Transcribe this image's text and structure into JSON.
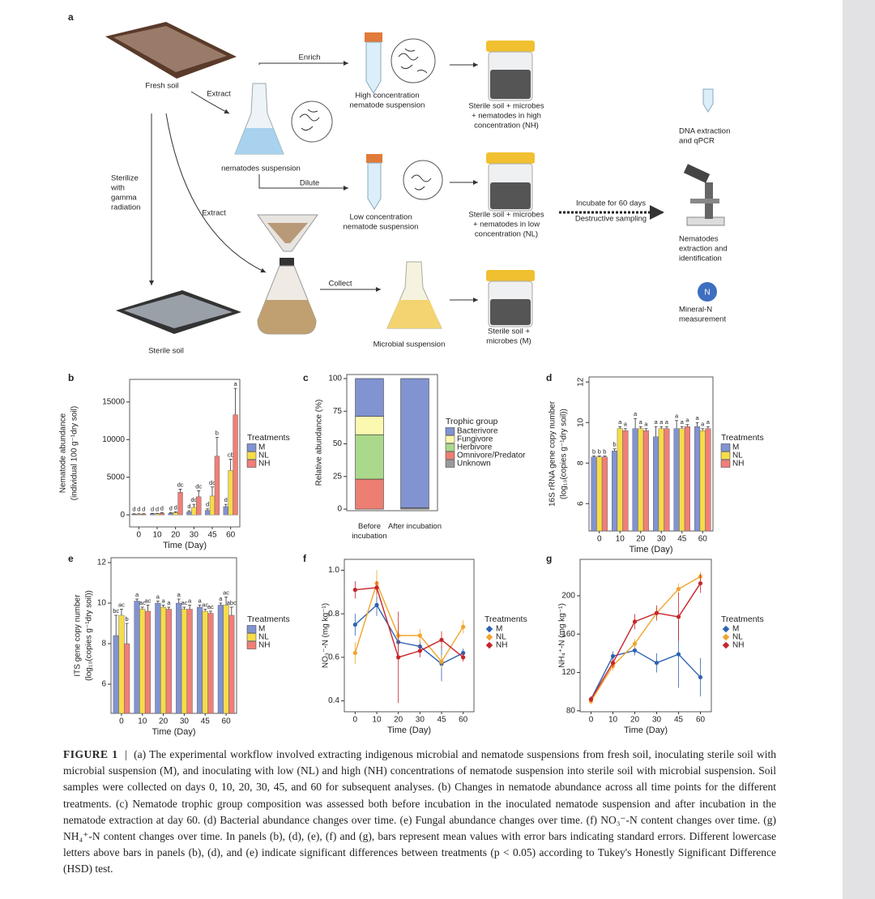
{
  "panel_a": {
    "label": "a",
    "fresh_soil": "Fresh soil",
    "extract_1": "Extract",
    "enrich": "Enrich",
    "high_suspension": [
      "High concentration",
      "nematode suspension"
    ],
    "nh_jar": [
      "Sterile soil + microbes",
      "+ nematodes in high",
      "concentration (NH)"
    ],
    "dna": [
      "DNA extraction",
      "and qPCR"
    ],
    "nematodes_suspension": "nematodes suspension",
    "dilute": "Dilute",
    "sterilize": [
      "Sterilize",
      "with",
      "gamma",
      "radiation"
    ],
    "extract_2": "Extract",
    "low_suspension": [
      "Low concentration",
      "nematode suspension"
    ],
    "nl_jar": [
      "Sterile soil + microbes",
      "+ nematodes in low",
      "concentration (NL)"
    ],
    "incubate": "Incubate for 60 days",
    "sampling": "Destructive sampling",
    "nematode_id": [
      "Nematodes",
      "extraction and",
      "identification"
    ],
    "n_icon": "N",
    "mineral": [
      "Mineral-N",
      "measurement"
    ],
    "collect": "Collect",
    "microbial_suspension": "Microbial suspension",
    "m_jar": [
      "Sterile soil +",
      "microbes (M)"
    ],
    "sterile_soil": "Sterile soil"
  },
  "chart_data": [
    {
      "panel": "b",
      "type": "bar",
      "ylabel": "Nematode abundance",
      "ylabel2": "(individual 100 g⁻¹dry soil)",
      "xlabel": "Time (Day)",
      "legend_title": "Treatments",
      "categories": [
        "0",
        "10",
        "20",
        "30",
        "45",
        "60"
      ],
      "ylim": [
        -1600,
        18000
      ],
      "yticks": [
        0,
        5000,
        10000,
        15000
      ],
      "series": [
        {
          "name": "M",
          "color": "#8193d1",
          "values": [
            100,
            150,
            200,
            400,
            600,
            1100
          ],
          "errors": [
            50,
            50,
            80,
            150,
            200,
            300
          ],
          "letters": [
            "d",
            "d",
            "d",
            "d",
            "d",
            "d"
          ]
        },
        {
          "name": "NL",
          "color": "#f6dc4a",
          "values": [
            100,
            150,
            300,
            1000,
            2500,
            5900
          ],
          "errors": [
            50,
            50,
            100,
            400,
            1200,
            1500
          ],
          "letters": [
            "d",
            "d",
            "d",
            "dc",
            "dc",
            "cb"
          ]
        },
        {
          "name": "NH",
          "color": "#ef7f78",
          "values": [
            100,
            200,
            3000,
            2400,
            7800,
            13300
          ],
          "errors": [
            50,
            80,
            400,
            800,
            2500,
            3500
          ],
          "letters": [
            "d",
            "d",
            "dc",
            "dc",
            "b",
            "a"
          ]
        }
      ]
    },
    {
      "panel": "c",
      "type": "stacked_bar",
      "ylabel": "Relative abundance (%)",
      "legend_title": "Trophic group",
      "categories": [
        "Before incubation",
        "After incubation"
      ],
      "ylim": [
        -1.2,
        103.1
      ],
      "yticks": [
        0,
        25,
        50,
        75,
        100
      ],
      "series": [
        {
          "name": "Bacterivore",
          "color": "#8193d1",
          "values": [
            29,
            99
          ]
        },
        {
          "name": "Fungivore",
          "color": "#fbf8b0",
          "values": [
            14,
            0
          ]
        },
        {
          "name": "Herbivore",
          "color": "#abd98c",
          "values": [
            34,
            0
          ]
        },
        {
          "name": "Omnivore/Predator",
          "color": "#ec7e72",
          "values": [
            23,
            0
          ]
        },
        {
          "name": "Unknown",
          "color": "#9a9a9a",
          "values": [
            0,
            1
          ]
        }
      ]
    },
    {
      "panel": "d",
      "type": "bar",
      "ylabel": "16S rRNA gene copy number",
      "ylabel2": "(log₁₀(copies g⁻¹dry soil))",
      "xlabel": "Time (Day)",
      "legend_title": "Treatments",
      "categories": [
        "0",
        "10",
        "20",
        "30",
        "45",
        "60"
      ],
      "ylim": [
        4.65,
        12.25
      ],
      "yticks": [
        6,
        8,
        10,
        12
      ],
      "series": [
        {
          "name": "M",
          "color": "#8193d1",
          "values": [
            8.3,
            8.6,
            9.7,
            9.3,
            9.7,
            9.8
          ],
          "errors": [
            0.05,
            0.1,
            0.5,
            0.5,
            0.4,
            0.2
          ],
          "letters": [
            "b",
            "b",
            "a",
            "a",
            "a",
            "a"
          ]
        },
        {
          "name": "NL",
          "color": "#f6dc4a",
          "values": [
            8.3,
            9.7,
            9.7,
            9.7,
            9.7,
            9.6
          ],
          "errors": [
            0.05,
            0.1,
            0.1,
            0.1,
            0.1,
            0.1
          ],
          "letters": [
            "b",
            "a",
            "a",
            "a",
            "a",
            "a"
          ]
        },
        {
          "name": "NH",
          "color": "#ef7f78",
          "values": [
            8.3,
            9.6,
            9.6,
            9.7,
            9.8,
            9.7
          ],
          "errors": [
            0.05,
            0.1,
            0.1,
            0.1,
            0.1,
            0.1
          ],
          "letters": [
            "b",
            "a",
            "a",
            "a",
            "a",
            "a"
          ]
        }
      ]
    },
    {
      "panel": "e",
      "type": "bar",
      "ylabel": "ITS gene copy number",
      "ylabel2": "(log₁₀(copies g⁻¹dry soil))",
      "xlabel": "Time (Day)",
      "legend_title": "Treatments",
      "categories": [
        "0",
        "10",
        "20",
        "30",
        "45",
        "60"
      ],
      "ylim": [
        4.56,
        12.24
      ],
      "yticks": [
        6,
        8,
        10,
        12
      ],
      "series": [
        {
          "name": "M",
          "color": "#8193d1",
          "values": [
            8.4,
            10.1,
            10.0,
            10.0,
            9.8,
            9.9
          ],
          "errors": [
            1.0,
            0.1,
            0.1,
            0.2,
            0.1,
            0.1
          ],
          "letters": [
            "bc",
            "a",
            "a",
            "a",
            "a",
            "a"
          ]
        },
        {
          "name": "NL",
          "color": "#f6dc4a",
          "values": [
            9.4,
            9.7,
            9.8,
            9.7,
            9.6,
            9.9
          ],
          "errors": [
            0.3,
            0.1,
            0.1,
            0.1,
            0.1,
            0.4
          ],
          "letters": [
            "ac",
            "ac",
            "a",
            "ac",
            "ac",
            "ac"
          ]
        },
        {
          "name": "NH",
          "color": "#ef7f78",
          "values": [
            8.0,
            9.6,
            9.7,
            9.7,
            9.5,
            9.4
          ],
          "errors": [
            1.0,
            0.3,
            0.1,
            0.2,
            0.1,
            0.4
          ],
          "letters": [
            "b",
            "ac",
            "a",
            "a",
            "ac",
            "abc"
          ]
        }
      ]
    },
    {
      "panel": "f",
      "type": "line",
      "ylabel": "NO₃⁻-N (mg kg⁻¹)",
      "xlabel": "Time (Day)",
      "legend_title": "Treatments",
      "categories": [
        "0",
        "10",
        "20",
        "30",
        "45",
        "60"
      ],
      "ylim": [
        0.35,
        1.05
      ],
      "yticks": [
        0.4,
        0.6,
        0.8,
        {
          "value": 1,
          "label": "1.0"
        }
      ],
      "series": [
        {
          "name": "M",
          "color": "#2e63b0",
          "values": [
            0.75,
            0.84,
            0.67,
            0.65,
            0.57,
            0.62
          ],
          "errors": [
            0.05,
            0.05,
            0.05,
            0.03,
            0.08,
            0.02
          ]
        },
        {
          "name": "NL",
          "color": "#f0a52c",
          "values": [
            0.62,
            0.94,
            0.7,
            0.7,
            0.58,
            0.74
          ],
          "errors": [
            0.05,
            0.06,
            0.05,
            0.03,
            0.03,
            0.03
          ]
        },
        {
          "name": "NH",
          "color": "#c7252b",
          "values": [
            0.91,
            0.92,
            0.6,
            0.63,
            0.68,
            0.6
          ],
          "errors": [
            0.04,
            0.03,
            0.21,
            0.03,
            0.04,
            0.02
          ]
        }
      ]
    },
    {
      "panel": "g",
      "type": "line",
      "ylabel": "NH₄⁺-N (mg kg⁻¹)",
      "xlabel": "Time (Day)",
      "legend_title": "Treatments",
      "categories": [
        "0",
        "10",
        "20",
        "30",
        "45",
        "60"
      ],
      "ylim": [
        79,
        238
      ],
      "yticks": [
        80,
        120,
        160,
        200
      ],
      "series": [
        {
          "name": "M",
          "color": "#2e63b0",
          "values": [
            92,
            137,
            143,
            130,
            139,
            115
          ],
          "errors": [
            3,
            5,
            5,
            10,
            35,
            20
          ]
        },
        {
          "name": "NL",
          "color": "#f0a52c",
          "values": [
            90,
            127,
            150,
            182,
            207,
            220
          ],
          "errors": [
            3,
            5,
            5,
            5,
            6,
            5
          ]
        },
        {
          "name": "NH",
          "color": "#c7252b",
          "values": [
            92,
            130,
            173,
            182,
            178,
            213
          ],
          "errors": [
            3,
            5,
            8,
            8,
            25,
            10
          ]
        }
      ]
    }
  ],
  "caption": {
    "label": "FIGURE 1",
    "separator": "|",
    "text": "(a) The experimental workflow involved extracting indigenous microbial and nematode suspensions from fresh soil, inoculating sterile soil with microbial suspension (M), and inoculating with low (NL) and high (NH) concentrations of nematode suspension into sterile soil with microbial suspension. Soil samples were collected on days 0, 10, 20, 30, 45, and 60 for subsequent analyses. (b) Changes in nematode abundance across all time points for the different treatments. (c) Nematode trophic group composition was assessed both before incubation in the inoculated nematode suspension and after incubation in the nematode extraction at day 60. (d) Bacterial abundance changes over time. (e) Fungal abundance changes over time. (f) NO₃⁻-N content changes over time. (g) NH₄⁺-N content changes over time. In panels (b), (d), (e), (f) and (g), bars represent mean values with error bars indicating standard errors. Different lowercase letters above bars in panels (b), (d), and (e) indicate significant differences between treatments (p < 0.05) according to Tukey's Honestly Significant Difference (HSD) test."
  }
}
